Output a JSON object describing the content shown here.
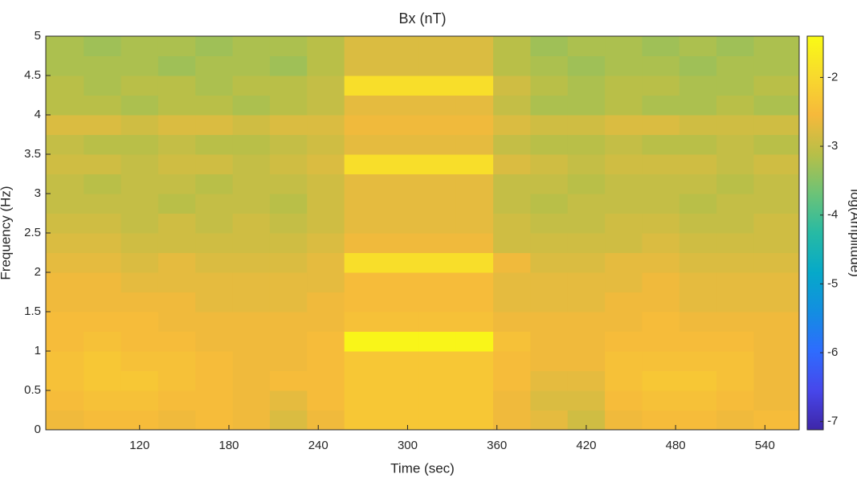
{
  "chart_data": {
    "type": "heatmap",
    "title": "Bx (nT)",
    "x_label": "Time (sec)",
    "y_label": "Frequency (Hz)",
    "colorbar_label": "log(Amplitude)",
    "colormap": "parula",
    "xlim": [
      57,
      563
    ],
    "xticks": [
      120,
      180,
      240,
      300,
      360,
      420,
      480,
      540
    ],
    "ylim": [
      0,
      5
    ],
    "yticks": [
      0,
      0.5,
      1,
      1.5,
      2,
      2.5,
      3,
      3.5,
      4,
      4.5,
      5
    ],
    "clim": [
      -7.12,
      -1.4
    ],
    "cticks": [
      -7,
      -6,
      -5,
      -4,
      -3,
      -2
    ],
    "x": [
      70,
      95,
      120,
      145,
      170,
      195,
      220,
      245,
      270,
      295,
      320,
      345,
      370,
      395,
      420,
      445,
      470,
      495,
      520,
      545
    ],
    "y": [
      0.125,
      0.375,
      0.625,
      0.875,
      1.125,
      1.375,
      1.625,
      1.875,
      2.125,
      2.375,
      2.625,
      2.875,
      3.125,
      3.375,
      3.625,
      3.875,
      4.125,
      4.375,
      4.625,
      4.875
    ],
    "z": [
      [
        -2.6,
        -2.5,
        -2.5,
        -2.6,
        -2.5,
        -2.6,
        -2.8,
        -2.6,
        -2.3,
        -2.3,
        -2.3,
        -2.3,
        -2.6,
        -2.7,
        -2.9,
        -2.6,
        -2.5,
        -2.5,
        -2.6,
        -2.5
      ],
      [
        -2.5,
        -2.4,
        -2.4,
        -2.5,
        -2.5,
        -2.6,
        -2.7,
        -2.5,
        -2.3,
        -2.3,
        -2.3,
        -2.3,
        -2.6,
        -2.8,
        -2.8,
        -2.5,
        -2.4,
        -2.4,
        -2.5,
        -2.6
      ],
      [
        -2.4,
        -2.3,
        -2.3,
        -2.4,
        -2.5,
        -2.6,
        -2.5,
        -2.5,
        -2.3,
        -2.3,
        -2.3,
        -2.3,
        -2.5,
        -2.7,
        -2.7,
        -2.4,
        -2.3,
        -2.3,
        -2.4,
        -2.6
      ],
      [
        -2.4,
        -2.3,
        -2.4,
        -2.4,
        -2.5,
        -2.6,
        -2.6,
        -2.5,
        -2.3,
        -2.3,
        -2.3,
        -2.3,
        -2.5,
        -2.6,
        -2.6,
        -2.4,
        -2.4,
        -2.4,
        -2.4,
        -2.6
      ],
      [
        -2.5,
        -2.4,
        -2.5,
        -2.5,
        -2.6,
        -2.6,
        -2.6,
        -2.5,
        -1.5,
        -1.5,
        -1.5,
        -1.5,
        -2.4,
        -2.6,
        -2.6,
        -2.5,
        -2.5,
        -2.5,
        -2.5,
        -2.6
      ],
      [
        -2.5,
        -2.5,
        -2.5,
        -2.6,
        -2.6,
        -2.6,
        -2.6,
        -2.6,
        -2.4,
        -2.4,
        -2.4,
        -2.4,
        -2.6,
        -2.6,
        -2.6,
        -2.6,
        -2.5,
        -2.6,
        -2.6,
        -2.6
      ],
      [
        -2.6,
        -2.6,
        -2.6,
        -2.6,
        -2.7,
        -2.7,
        -2.7,
        -2.6,
        -2.5,
        -2.5,
        -2.5,
        -2.5,
        -2.7,
        -2.7,
        -2.7,
        -2.6,
        -2.6,
        -2.7,
        -2.7,
        -2.7
      ],
      [
        -2.6,
        -2.6,
        -2.7,
        -2.7,
        -2.7,
        -2.7,
        -2.7,
        -2.7,
        -2.5,
        -2.5,
        -2.5,
        -2.5,
        -2.7,
        -2.7,
        -2.7,
        -2.7,
        -2.6,
        -2.7,
        -2.7,
        -2.7
      ],
      [
        -2.7,
        -2.7,
        -2.8,
        -2.7,
        -2.8,
        -2.8,
        -2.8,
        -2.7,
        -1.9,
        -1.9,
        -1.9,
        -1.9,
        -2.6,
        -2.8,
        -2.8,
        -2.7,
        -2.7,
        -2.8,
        -2.8,
        -2.8
      ],
      [
        -2.8,
        -2.8,
        -2.9,
        -2.9,
        -2.9,
        -2.9,
        -2.9,
        -2.8,
        -2.6,
        -2.6,
        -2.6,
        -2.6,
        -2.9,
        -2.9,
        -2.9,
        -2.9,
        -2.8,
        -2.9,
        -2.9,
        -2.9
      ],
      [
        -2.9,
        -2.9,
        -3.0,
        -2.9,
        -3.0,
        -2.9,
        -3.0,
        -2.9,
        -2.7,
        -2.7,
        -2.7,
        -2.7,
        -2.9,
        -3.0,
        -3.0,
        -2.9,
        -2.9,
        -3.0,
        -3.0,
        -2.9
      ],
      [
        -3.0,
        -3.0,
        -3.0,
        -3.1,
        -3.0,
        -3.0,
        -3.1,
        -2.9,
        -2.7,
        -2.7,
        -2.7,
        -2.7,
        -3.0,
        -3.1,
        -3.0,
        -3.0,
        -3.0,
        -3.1,
        -3.0,
        -3.0
      ],
      [
        -3.0,
        -3.1,
        -3.0,
        -3.0,
        -3.1,
        -3.0,
        -3.0,
        -2.9,
        -2.7,
        -2.7,
        -2.7,
        -2.7,
        -3.0,
        -3.0,
        -3.1,
        -3.0,
        -3.0,
        -3.0,
        -3.1,
        -3.0
      ],
      [
        -2.9,
        -2.9,
        -3.0,
        -2.9,
        -2.9,
        -3.0,
        -2.9,
        -2.8,
        -1.9,
        -1.9,
        -1.9,
        -1.9,
        -2.8,
        -2.9,
        -3.0,
        -2.9,
        -2.9,
        -2.9,
        -3.0,
        -2.9
      ],
      [
        -3.0,
        -3.1,
        -3.1,
        -3.0,
        -3.1,
        -3.1,
        -3.0,
        -2.9,
        -2.7,
        -2.7,
        -2.7,
        -2.7,
        -3.0,
        -3.1,
        -3.1,
        -3.0,
        -3.1,
        -3.1,
        -3.0,
        -3.1
      ],
      [
        -2.8,
        -2.8,
        -2.9,
        -2.8,
        -2.8,
        -2.9,
        -2.8,
        -2.8,
        -2.6,
        -2.6,
        -2.6,
        -2.6,
        -2.8,
        -2.9,
        -2.9,
        -2.8,
        -2.8,
        -2.9,
        -2.9,
        -2.9
      ],
      [
        -3.1,
        -3.1,
        -3.2,
        -3.1,
        -3.1,
        -3.2,
        -3.1,
        -3.0,
        -2.7,
        -2.7,
        -2.7,
        -2.7,
        -3.0,
        -3.2,
        -3.2,
        -3.1,
        -3.2,
        -3.2,
        -3.1,
        -3.2
      ],
      [
        -3.1,
        -3.2,
        -3.1,
        -3.1,
        -3.2,
        -3.1,
        -3.1,
        -3.0,
        -1.9,
        -1.9,
        -1.9,
        -1.9,
        -2.9,
        -3.1,
        -3.2,
        -3.1,
        -3.1,
        -3.2,
        -3.2,
        -3.1
      ],
      [
        -3.2,
        -3.2,
        -3.2,
        -3.3,
        -3.2,
        -3.2,
        -3.3,
        -3.1,
        -2.8,
        -2.8,
        -2.8,
        -2.8,
        -3.1,
        -3.2,
        -3.3,
        -3.2,
        -3.2,
        -3.3,
        -3.2,
        -3.2
      ],
      [
        -3.2,
        -3.3,
        -3.2,
        -3.2,
        -3.3,
        -3.2,
        -3.2,
        -3.1,
        -2.8,
        -2.8,
        -2.8,
        -2.8,
        -3.1,
        -3.3,
        -3.2,
        -3.2,
        -3.3,
        -3.2,
        -3.3,
        -3.2
      ]
    ]
  }
}
